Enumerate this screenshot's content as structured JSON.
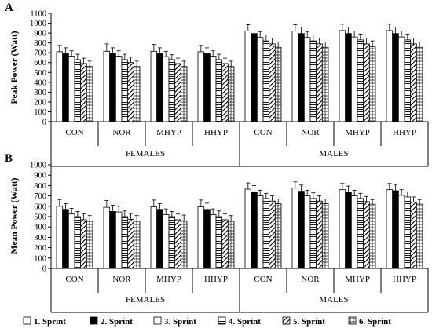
{
  "chart_data": [
    {
      "type": "bar",
      "panel_label": "A",
      "ylabel": "Peak Power (Watt)",
      "ylim": [
        0,
        1100
      ],
      "yticks": [
        0,
        100,
        200,
        300,
        400,
        500,
        600,
        700,
        800,
        900,
        1000,
        1100
      ],
      "categories": [
        "CON",
        "NOR",
        "MHYP",
        "HHYP",
        "CON",
        "NOR",
        "MHYP",
        "HHYP"
      ],
      "groups": [
        "FEMALES",
        "MALES"
      ],
      "series": [
        {
          "name": "1. Sprint",
          "values": [
            710,
            715,
            715,
            710,
            920,
            920,
            925,
            925
          ],
          "errors": [
            65,
            75,
            70,
            65,
            65,
            65,
            65,
            65
          ]
        },
        {
          "name": "2. Sprint",
          "values": [
            690,
            690,
            690,
            690,
            895,
            895,
            895,
            895
          ],
          "errors": [
            60,
            60,
            60,
            60,
            65,
            65,
            65,
            65
          ]
        },
        {
          "name": "3. Sprint",
          "values": [
            665,
            665,
            660,
            665,
            855,
            855,
            860,
            860
          ],
          "errors": [
            55,
            55,
            55,
            55,
            60,
            60,
            60,
            60
          ]
        },
        {
          "name": "4. Sprint",
          "values": [
            630,
            630,
            630,
            630,
            820,
            820,
            830,
            830
          ],
          "errors": [
            55,
            55,
            50,
            55,
            60,
            60,
            60,
            60
          ]
        },
        {
          "name": "5. Sprint",
          "values": [
            590,
            600,
            590,
            590,
            790,
            790,
            790,
            790
          ],
          "errors": [
            55,
            55,
            55,
            55,
            60,
            60,
            60,
            60
          ]
        },
        {
          "name": "6. Sprint",
          "values": [
            560,
            560,
            560,
            560,
            755,
            755,
            760,
            755
          ],
          "errors": [
            55,
            55,
            55,
            55,
            55,
            55,
            60,
            55
          ]
        }
      ]
    },
    {
      "type": "bar",
      "panel_label": "B",
      "ylabel": "Mean Power (Watt)",
      "ylim": [
        0,
        1000
      ],
      "yticks": [
        0,
        100,
        200,
        300,
        400,
        500,
        600,
        700,
        800,
        900,
        1000
      ],
      "categories": [
        "CON",
        "NOR",
        "MHYP",
        "HHYP",
        "CON",
        "NOR",
        "MHYP",
        "HHYP"
      ],
      "groups": [
        "FEMALES",
        "MALES"
      ],
      "series": [
        {
          "name": "1. Sprint",
          "values": [
            600,
            590,
            595,
            595,
            765,
            775,
            760,
            760
          ],
          "errors": [
            65,
            65,
            65,
            65,
            60,
            60,
            60,
            60
          ]
        },
        {
          "name": "2. Sprint",
          "values": [
            570,
            550,
            570,
            570,
            740,
            745,
            735,
            750
          ],
          "errors": [
            55,
            60,
            55,
            60,
            60,
            60,
            60,
            60
          ]
        },
        {
          "name": "3. Sprint",
          "values": [
            525,
            545,
            520,
            520,
            700,
            700,
            700,
            705
          ],
          "errors": [
            55,
            55,
            55,
            55,
            55,
            55,
            55,
            55
          ]
        },
        {
          "name": "4. Sprint",
          "values": [
            500,
            500,
            500,
            500,
            675,
            675,
            675,
            690
          ],
          "errors": [
            50,
            55,
            50,
            55,
            50,
            55,
            50,
            50
          ]
        },
        {
          "name": "5. Sprint",
          "values": [
            470,
            475,
            470,
            470,
            650,
            650,
            645,
            640
          ],
          "errors": [
            55,
            55,
            55,
            55,
            50,
            50,
            50,
            50
          ]
        },
        {
          "name": "6. Sprint",
          "values": [
            455,
            455,
            460,
            455,
            625,
            625,
            620,
            620
          ],
          "errors": [
            55,
            55,
            55,
            55,
            45,
            45,
            45,
            45
          ]
        }
      ]
    }
  ],
  "legend": {
    "placement": "bottom",
    "items": [
      "1. Sprint",
      "2. Sprint",
      "3. Sprint",
      "4. Sprint",
      "5. Sprint",
      "6. Sprint"
    ]
  },
  "patterns": [
    "white",
    "black",
    "white-light",
    "horizontal-lines",
    "diagonal-hatch",
    "grid"
  ]
}
